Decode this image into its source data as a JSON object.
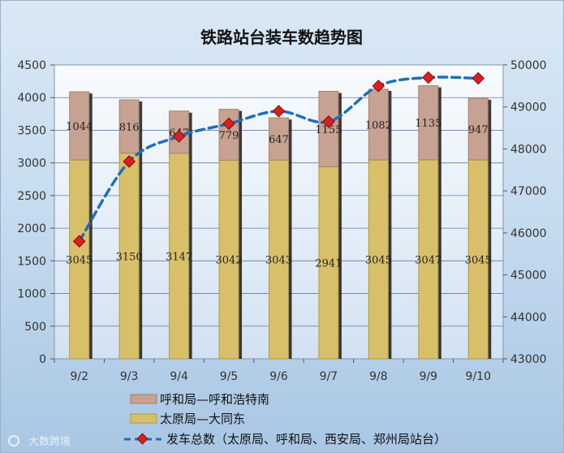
{
  "colors": {
    "bottom_bar": "#d8c06a",
    "bottom_bar_edge": "#b49a3c",
    "top_bar": "#c7a191",
    "top_bar_edge": "#a8806e",
    "line": "#1f6fb8",
    "marker": "#e01d1d",
    "marker_edge": "#7a1010",
    "plot_bg": "#f2f7fc"
  },
  "chart_data": {
    "type": "bar",
    "title": "铁路站台装车数趋势图",
    "categories": [
      "9/2",
      "9/3",
      "9/4",
      "9/5",
      "9/6",
      "9/7",
      "9/8",
      "9/9",
      "9/10"
    ],
    "stacked": true,
    "ylim": [
      0,
      4500
    ],
    "yticks": [
      "0",
      "500",
      "1000",
      "1500",
      "2000",
      "2500",
      "3000",
      "3500",
      "4000",
      "4500"
    ],
    "y2lim": [
      43000,
      50000
    ],
    "y2ticks": [
      "43000",
      "44000",
      "45000",
      "46000",
      "47000",
      "48000",
      "49000",
      "50000"
    ],
    "grid": true,
    "legend_position": "bottom",
    "series": [
      {
        "name": "太原局—大同东",
        "type": "bar",
        "values": [
          3045,
          3150,
          3147,
          3042,
          3043,
          2941,
          3045,
          3047,
          3045
        ],
        "labels": [
          "3045",
          "3150",
          "3147",
          "3042",
          "3043",
          "2941",
          "3045",
          "3047",
          "3045"
        ]
      },
      {
        "name": "呼和局—呼和浩特南",
        "type": "bar",
        "values": [
          1044,
          816,
          647,
          779,
          647,
          1155,
          1082,
          1135,
          947
        ],
        "labels": [
          "1044",
          "816",
          "647",
          "779",
          "647",
          "1155",
          "1082",
          "1135",
          "947"
        ]
      },
      {
        "name": "发车总数（太原局、呼和局、西安局、郑州局站台）",
        "type": "line",
        "axis": "secondary",
        "values": [
          45800,
          47700,
          48300,
          48600,
          48900,
          48650,
          49500,
          49700,
          49680
        ]
      }
    ]
  },
  "watermark": "大数跨境"
}
